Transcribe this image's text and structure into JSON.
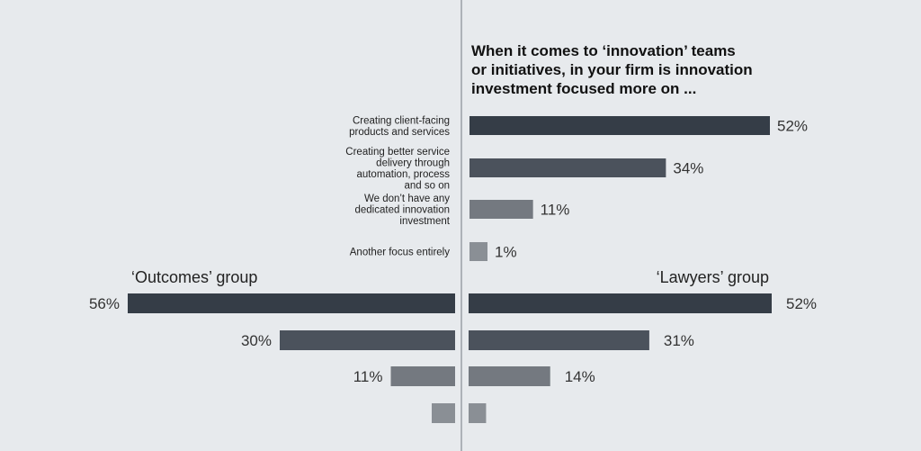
{
  "chart_data": [
    {
      "type": "bar",
      "title": [
        "When it comes to ‘innovation’ teams",
        "or initiatives, in your firm is innovation",
        "investment focused more on ..."
      ],
      "categories": [
        [
          "Creating client-facing",
          "products and services"
        ],
        [
          "Creating better service",
          "delivery through",
          "automation, process",
          "and so on"
        ],
        [
          "We don’t have any",
          "dedicated innovation",
          "investment"
        ],
        [
          "Another focus entirely"
        ]
      ],
      "values": [
        52,
        34,
        11,
        1
      ],
      "value_labels": [
        "52%",
        "34%",
        "11%",
        "1%"
      ],
      "orientation": "horizontal"
    },
    {
      "type": "bar",
      "group_label": "‘Outcomes’ group",
      "values": [
        56,
        30,
        11,
        4
      ],
      "value_labels": [
        "56%",
        "30%",
        "11%",
        ""
      ],
      "orientation": "horizontal",
      "direction": "leftward"
    },
    {
      "type": "bar",
      "group_label": "‘Lawyers’ group",
      "values": [
        52,
        31,
        14,
        3
      ],
      "value_labels": [
        "52%",
        "31%",
        "14%",
        ""
      ],
      "orientation": "horizontal"
    }
  ],
  "colors": {
    "background": "#e7eaed",
    "divider": "#9aa0a6",
    "bar_shades": [
      "#353d47",
      "#4b525c",
      "#747980",
      "#8a8f95"
    ]
  }
}
